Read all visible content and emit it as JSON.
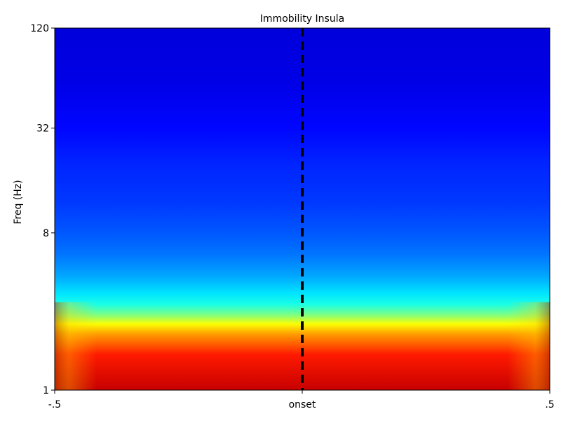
{
  "chart_data": {
    "type": "heatmap",
    "title": "Immobility Insula",
    "xlabel": "",
    "ylabel": "Freq (Hz)",
    "x_ticks": [
      {
        "label": "-.5",
        "value": -0.5
      },
      {
        "label": "onset",
        "value": 0
      },
      {
        "label": ".5",
        "value": 0.5
      }
    ],
    "y_ticks": [
      {
        "label": "1",
        "value": 1
      },
      {
        "label": "8",
        "value": 8
      },
      {
        "label": "32",
        "value": 32
      },
      {
        "label": "120",
        "value": 120
      }
    ],
    "xlim": [
      -0.5,
      0.5
    ],
    "ylim": [
      1,
      120
    ],
    "y_scale": "log",
    "colormap": "jet",
    "event_marker": {
      "x": 0,
      "style": "dashed",
      "color": "#000000"
    },
    "power_profile": [
      {
        "freq": 1,
        "level": 0.93
      },
      {
        "freq": 1.6,
        "level": 0.85
      },
      {
        "freq": 2.1,
        "level": 0.72
      },
      {
        "freq": 2.4,
        "level": 0.62
      },
      {
        "freq": 2.7,
        "level": 0.5
      },
      {
        "freq": 3.1,
        "level": 0.4
      },
      {
        "freq": 3.6,
        "level": 0.35
      },
      {
        "freq": 4.5,
        "level": 0.29
      },
      {
        "freq": 6,
        "level": 0.24
      },
      {
        "freq": 8,
        "level": 0.21
      },
      {
        "freq": 12,
        "level": 0.18
      },
      {
        "freq": 20,
        "level": 0.16
      },
      {
        "freq": 32,
        "level": 0.13
      },
      {
        "freq": 60,
        "level": 0.1
      },
      {
        "freq": 120,
        "level": 0.09
      }
    ]
  }
}
